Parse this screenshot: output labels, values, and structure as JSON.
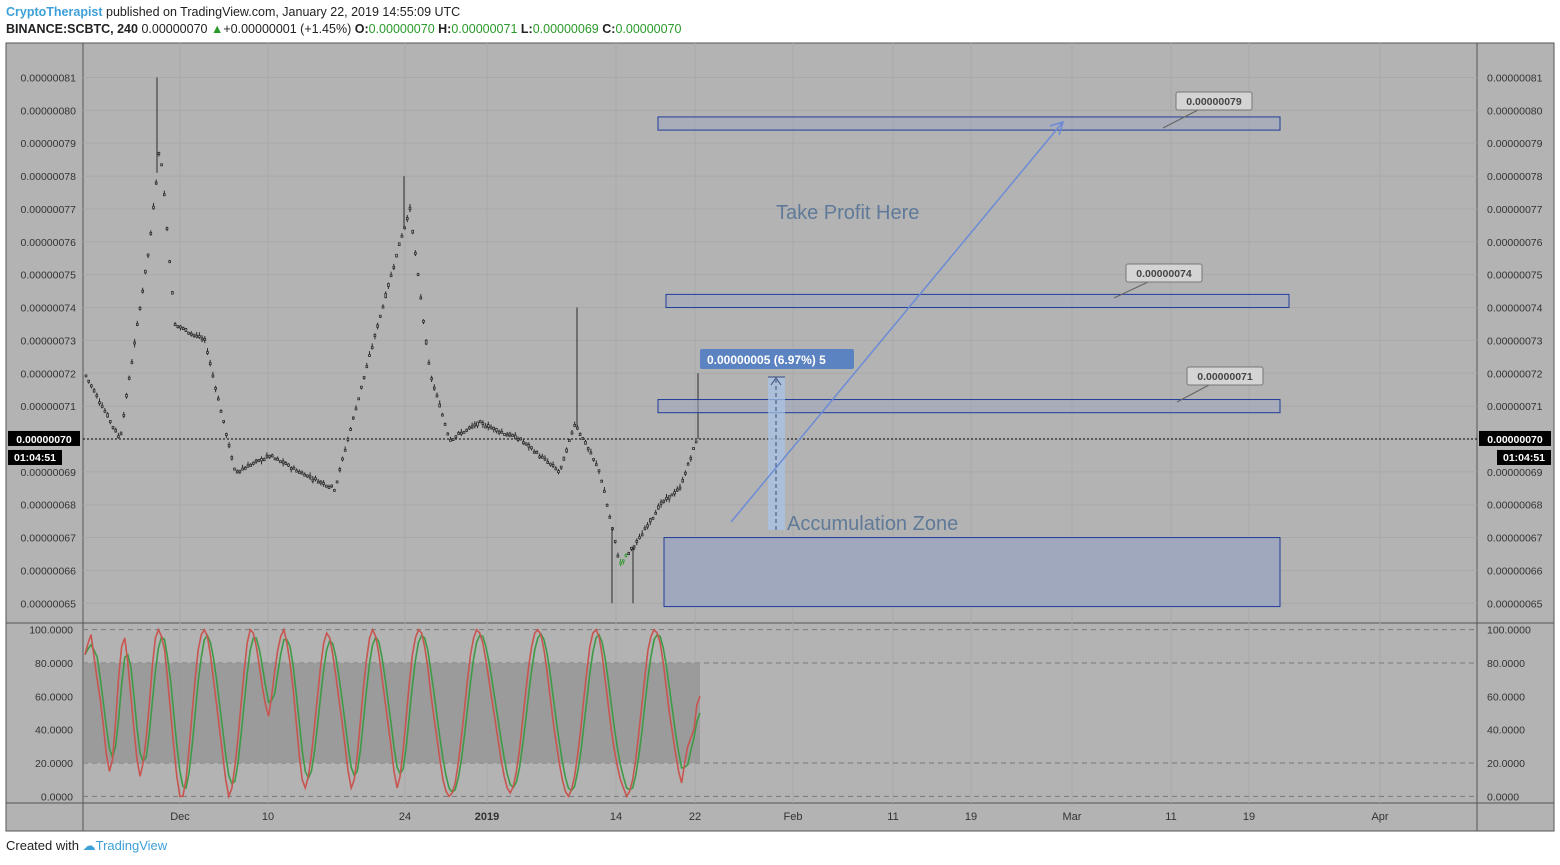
{
  "header": {
    "author": "CryptoTherapist",
    "published": "published on TradingView.com, January 22, 2019 14:55:09 UTC",
    "symbol": "BINANCE:SCBTC, 240",
    "last": "0.00000070",
    "change": "+0.00000001 (+1.45%)",
    "open_label": "O:",
    "open": "0.00000070",
    "high_label": "H:",
    "high": "0.00000071",
    "low_label": "L:",
    "low": "0.00000069",
    "close_label": "C:",
    "close": "0.00000070"
  },
  "footer": {
    "created": "Created with",
    "brand": "TradingView"
  },
  "colors": {
    "background": "#b3b3b3",
    "zone_border": "#1f3d99",
    "zone_fill": "#a0a8bd",
    "arrow": "#6b8bd6",
    "stoch_k": "#c8554f",
    "stoch_d": "#3f9a48"
  },
  "chart_data": [
    {
      "type": "candlestick",
      "title": "BINANCE:SCBTC, 240",
      "y_ticks": [
        "0.00000065",
        "0.00000066",
        "0.00000067",
        "0.00000068",
        "0.00000069",
        "0.00000070",
        "0.00000071",
        "0.00000072",
        "0.00000073",
        "0.00000074",
        "0.00000075",
        "0.00000076",
        "0.00000077",
        "0.00000078",
        "0.00000079",
        "0.00000080",
        "0.00000081"
      ],
      "x_ticks": [
        "Dec",
        "10",
        "24",
        "2019",
        "14",
        "22",
        "Feb",
        "11",
        "19",
        "Mar",
        "11",
        "19",
        "Apr"
      ],
      "ylim": [
        6.44e-07,
        8.205e-07
      ],
      "last_price_label": "0.00000070",
      "countdown": "01:04:51",
      "zones": [
        {
          "label": "0.00000079",
          "low": 7.94e-07,
          "high": 7.98e-07
        },
        {
          "label": "0.00000074",
          "low": 7.4e-07,
          "high": 7.44e-07
        },
        {
          "label": "0.00000071",
          "low": 7.08e-07,
          "high": 7.12e-07
        },
        {
          "label": "Accumulation Zone",
          "low": 6.49e-07,
          "high": 6.7e-07
        }
      ],
      "annotations": {
        "take_profit": "Take Profit Here",
        "accumulation": "Accumulation Zone",
        "measure": "0.00000005 (6.97%) 5"
      }
    },
    {
      "type": "line",
      "y_ticks": [
        "0.0000",
        "20.0000",
        "40.0000",
        "60.0000",
        "80.0000",
        "100.0000"
      ],
      "ylim": [
        -4,
        104
      ],
      "band": [
        20,
        80
      ],
      "series": [
        {
          "values": [
            85,
            92,
            97,
            83,
            70,
            58,
            42,
            25,
            15,
            22,
            45,
            72,
            90,
            95,
            80,
            60,
            40,
            22,
            12,
            20,
            35,
            55,
            78,
            95,
            100,
            96,
            88,
            70,
            50,
            30,
            12,
            0,
            0,
            10,
            28,
            50,
            70,
            88,
            97,
            100,
            96,
            85,
            70,
            55,
            40,
            25,
            10,
            0,
            5,
            18,
            35,
            55,
            75,
            92,
            100,
            98,
            90,
            78,
            65,
            55,
            48,
            60,
            75,
            88,
            96,
            100,
            92,
            80,
            65,
            45,
            25,
            10,
            5,
            12,
            25,
            42,
            60,
            78,
            92,
            98,
            95,
            85,
            72,
            58,
            45,
            30,
            15,
            5,
            10,
            25,
            45,
            65,
            82,
            95,
            100,
            96,
            86,
            72,
            58,
            44,
            30,
            15,
            5,
            12,
            28,
            48,
            68,
            85,
            95,
            100,
            98,
            90,
            78,
            62,
            48,
            35,
            22,
            10,
            3,
            0,
            2,
            8,
            20,
            35,
            52,
            70,
            85,
            95,
            100,
            98,
            92,
            82,
            70,
            58,
            46,
            34,
            22,
            12,
            5,
            2,
            6,
            15,
            28,
            45,
            62,
            78,
            90,
            98,
            100,
            97,
            88,
            75,
            60,
            45,
            32,
            20,
            10,
            3,
            0,
            4,
            12,
            25,
            40,
            58,
            75,
            90,
            98,
            100,
            96,
            85,
            70,
            55,
            40,
            28,
            18,
            10,
            5,
            0,
            3,
            10,
            22,
            38,
            55,
            72,
            88,
            96,
            100,
            98,
            92,
            80,
            65,
            50,
            38,
            26,
            15,
            8,
            20,
            30,
            35,
            40,
            55,
            60
          ]
        }
      ]
    }
  ]
}
